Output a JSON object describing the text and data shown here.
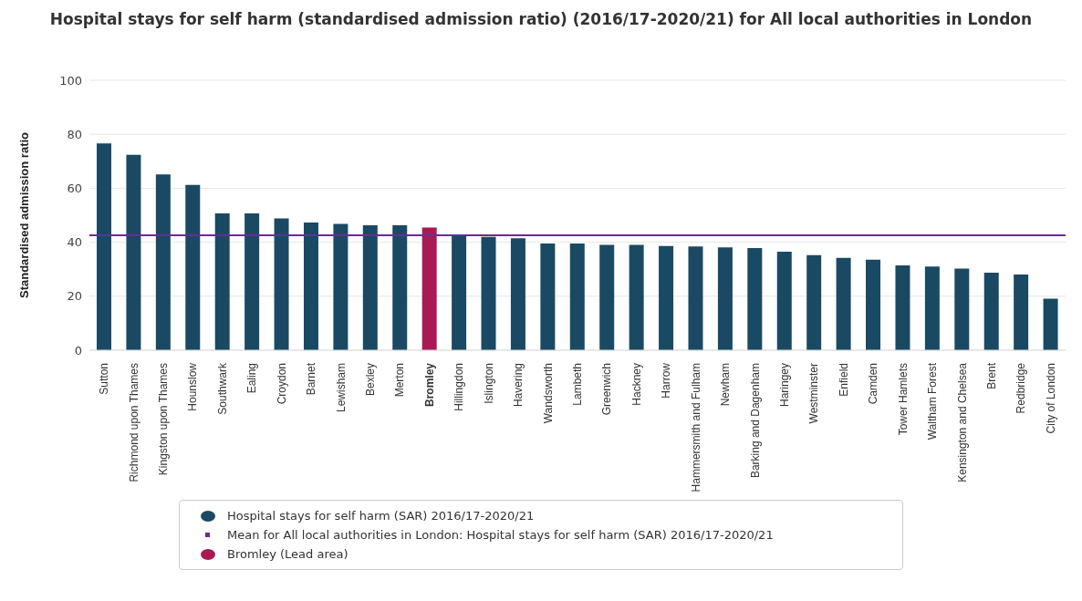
{
  "chart_data": {
    "type": "bar",
    "title": "Hospital stays for self harm (standardised admission ratio) (2016/17-2020/21) for All local authorities in London",
    "ylabel": "Standardised admission ratio",
    "categories": [
      "Sutton",
      "Richmond upon Thames",
      "Kingston upon Thames",
      "Hounslow",
      "Southwark",
      "Ealing",
      "Croydon",
      "Barnet",
      "Lewisham",
      "Bexley",
      "Merton",
      "Bromley",
      "Hillingdon",
      "Islington",
      "Havering",
      "Wandsworth",
      "Lambeth",
      "Greenwich",
      "Hackney",
      "Harrow",
      "Hammersmith and Fulham",
      "Newham",
      "Barking and Dagenham",
      "Haringey",
      "Westminster",
      "Enfield",
      "Camden",
      "Tower Hamlets",
      "Waltham Forest",
      "Kensington and Chelsea",
      "Brent",
      "Redbridge",
      "City of London"
    ],
    "stacked": true,
    "series": [
      {
        "name": "Hospital stays for self harm (SAR) 2016/17-2020/21",
        "color": "#1a4a63",
        "values": [
          76.6,
          72.4,
          65.1,
          61.2,
          50.7,
          50.7,
          48.8,
          47.3,
          46.8,
          46.3,
          46.3,
          null,
          42.6,
          42.0,
          41.5,
          39.5,
          39.5,
          39.0,
          39.0,
          38.6,
          38.4,
          38.1,
          37.8,
          36.5,
          35.2,
          34.2,
          33.5,
          31.4,
          31.0,
          30.2,
          28.7,
          28.0,
          19.1
        ]
      },
      {
        "name": "Bromley (Lead area)",
        "color": "#a91a55",
        "values": [
          null,
          null,
          null,
          null,
          null,
          null,
          null,
          null,
          null,
          null,
          null,
          45.4,
          null,
          null,
          null,
          null,
          null,
          null,
          null,
          null,
          null,
          null,
          null,
          null,
          null,
          null,
          null,
          null,
          null,
          null,
          null,
          null,
          null
        ]
      }
    ],
    "ref_lines": [
      {
        "axis": "y",
        "value": 42.6,
        "label": "Mean for All local authorities in London: Hospital stays for self harm (SAR) 2016/17-2020/21",
        "color": "#6a2c91"
      }
    ],
    "ylim": [
      0,
      100
    ],
    "yticks": [
      0,
      20,
      40,
      60,
      80,
      100
    ],
    "grid": "y",
    "legend": "bottom"
  }
}
